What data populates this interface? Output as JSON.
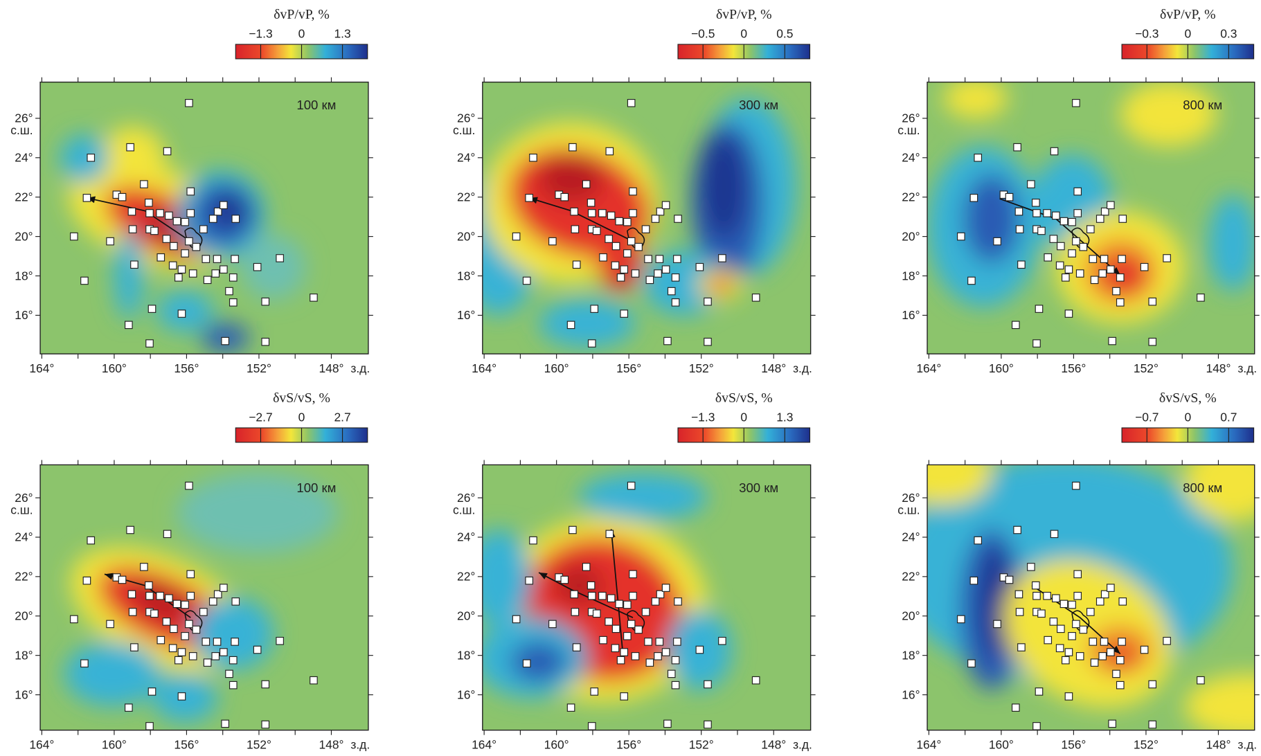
{
  "panels": [
    {
      "colorbar_title": "δvP/vP, %",
      "colorbar_ticks": [
        "−1.3",
        "0",
        "1.3"
      ],
      "depth": "100 км"
    },
    {
      "colorbar_title": "δvP/vP, %",
      "colorbar_ticks": [
        "−0.5",
        "0",
        "0.5"
      ],
      "depth": "300 км"
    },
    {
      "colorbar_title": "δvP/vP, %",
      "colorbar_ticks": [
        "−0.3",
        "0",
        "0.3"
      ],
      "depth": "800 км"
    },
    {
      "colorbar_title": "δvS/vS, %",
      "colorbar_ticks": [
        "−2.7",
        "0",
        "2.7"
      ],
      "depth": "100 км"
    },
    {
      "colorbar_title": "δvS/vS, %",
      "colorbar_ticks": [
        "−1.3",
        "0",
        "1.3"
      ],
      "depth": "300 км"
    },
    {
      "colorbar_title": "δvS/vS, %",
      "colorbar_ticks": [
        "−0.7",
        "0",
        "0.7"
      ],
      "depth": "800 км"
    }
  ],
  "axes": {
    "x_ticks": [
      "164°",
      "160°",
      "156°",
      "152°",
      "148°"
    ],
    "x_unit": "з.д.",
    "y_ticks": [
      "26°",
      "24°",
      "22°",
      "20°",
      "18°",
      "16°"
    ],
    "y_unit": "с.ш."
  }
}
